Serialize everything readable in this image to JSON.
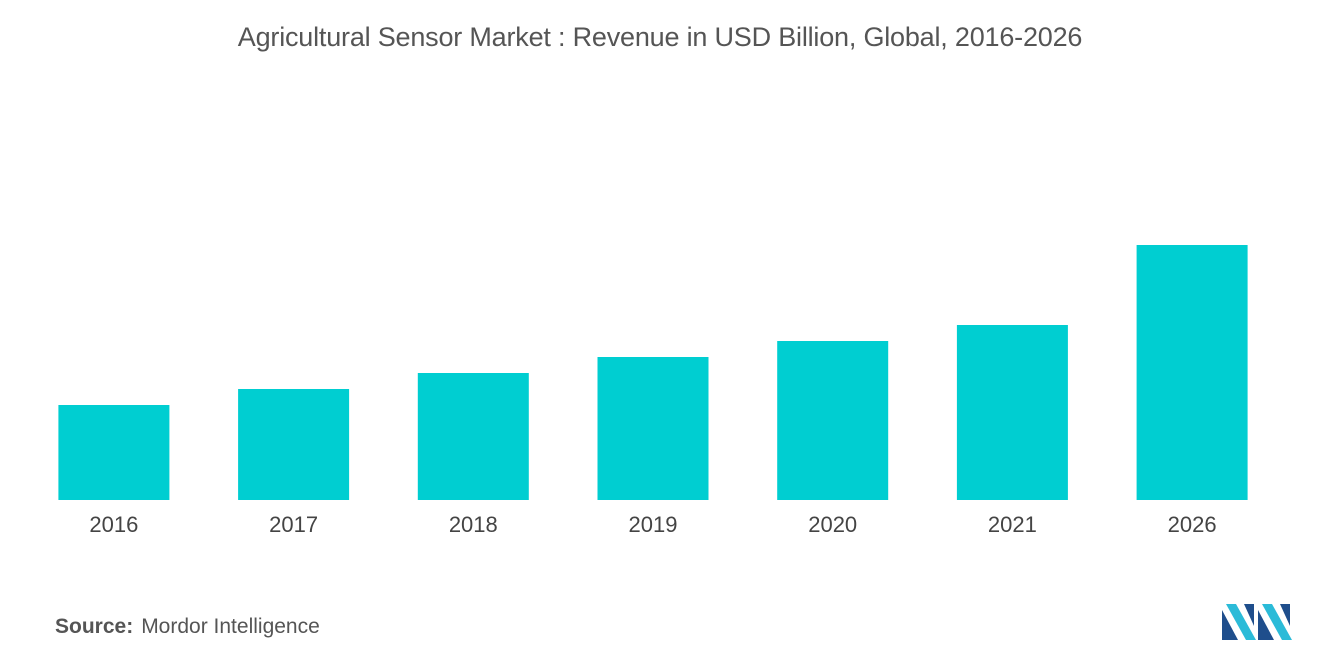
{
  "chart_data": {
    "type": "bar",
    "title": "Agricultural Sensor Market : Revenue in USD Billion, Global, 2016-2026",
    "categories": [
      "2016",
      "2017",
      "2018",
      "2019",
      "2020",
      "2021",
      "2026"
    ],
    "values": [
      0.95,
      1.11,
      1.27,
      1.43,
      1.59,
      1.75,
      2.55
    ],
    "xlabel": "",
    "ylabel": "",
    "ylim": [
      0,
      3.0
    ],
    "grid": false,
    "legend": "none",
    "bar_color": "#00CED1"
  },
  "source": {
    "label": "Source:",
    "text": "Mordor Intelligence"
  },
  "logo": {
    "icon": "mordor-intelligence-logo-icon",
    "colors": [
      "#1f4e8c",
      "#2bbbd8"
    ]
  }
}
